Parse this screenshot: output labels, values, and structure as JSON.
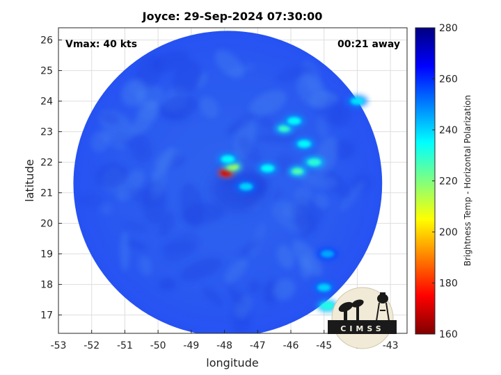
{
  "chart_data": {
    "type": "heatmap",
    "title": "Joyce: 29-Sep-2024 07:30:00",
    "annotations": {
      "left": "Vmax: 40 kts",
      "right": "00:21 away"
    },
    "xlabel": "longitude",
    "ylabel": "latitude",
    "xlim": [
      -53,
      -42.5
    ],
    "ylim": [
      16.4,
      26.4
    ],
    "x_ticks": [
      -53,
      -52,
      -51,
      -50,
      -49,
      -48,
      -47,
      -46,
      -45,
      -44,
      -43
    ],
    "y_ticks": [
      17,
      18,
      19,
      20,
      21,
      22,
      23,
      24,
      25,
      26
    ],
    "grid": true,
    "swath": {
      "center_lon": -47.9,
      "center_lat": 21.3,
      "radius_lon": 4.65,
      "radius_lat": 5.0
    },
    "colorbar": {
      "label": "Brightness Temp - Horizontal Polarization",
      "range": [
        160,
        280
      ],
      "ticks": [
        160,
        180,
        200,
        220,
        240,
        260,
        280
      ]
    },
    "features": [
      {
        "lon": -47.95,
        "lat": 21.65,
        "value": 170
      },
      {
        "lon": -47.75,
        "lat": 21.85,
        "value": 215
      },
      {
        "lon": -47.9,
        "lat": 22.1,
        "value": 235
      },
      {
        "lon": -47.35,
        "lat": 21.2,
        "value": 240
      },
      {
        "lon": -46.7,
        "lat": 21.8,
        "value": 235
      },
      {
        "lon": -45.8,
        "lat": 21.7,
        "value": 225
      },
      {
        "lon": -45.3,
        "lat": 22.0,
        "value": 230
      },
      {
        "lon": -45.6,
        "lat": 22.6,
        "value": 235
      },
      {
        "lon": -46.2,
        "lat": 23.1,
        "value": 228
      },
      {
        "lon": -45.9,
        "lat": 23.35,
        "value": 235
      },
      {
        "lon": -44.0,
        "lat": 24.0,
        "value": 238
      },
      {
        "lon": -44.9,
        "lat": 19.0,
        "value": 245
      },
      {
        "lon": -45.0,
        "lat": 17.9,
        "value": 240
      },
      {
        "lon": -44.9,
        "lat": 17.3,
        "value": 232
      }
    ]
  },
  "logo": {
    "text": "CIMSS"
  }
}
